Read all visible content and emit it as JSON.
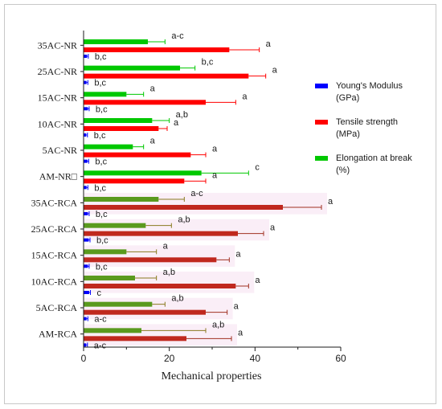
{
  "chart_data": {
    "type": "bar",
    "orientation": "horizontal",
    "xlabel": "Mechanical properties",
    "ylabel": "",
    "xlim": [
      0,
      60
    ],
    "xticks": [
      0,
      20,
      40,
      60
    ],
    "grid": false,
    "legend_position": "right",
    "categories": [
      "35AC-NR",
      "25AC-NR",
      "15AC-NR",
      "10AC-NR",
      "5AC-NR",
      "AM-NR□",
      "35AC-RCA",
      "25AC-RCA",
      "15AC-RCA",
      "10AC-RCA",
      "5AC-RCA",
      "AM-RCA"
    ],
    "series": [
      {
        "name": "Elongation at break (%)",
        "color": "#00c800",
        "values": [
          15,
          22.5,
          10,
          16,
          11.5,
          27.5,
          17.5,
          14.5,
          10,
          12,
          16,
          13.5
        ],
        "errors": [
          4,
          3.5,
          4,
          4,
          2.5,
          11,
          6,
          6,
          7,
          5,
          3,
          15
        ],
        "letters": [
          "a-c",
          "b,c",
          "a",
          "a,b",
          "a",
          "c",
          "a-c",
          "a,b",
          "a",
          "a,b",
          "a,b",
          "a,b"
        ]
      },
      {
        "name": "Tensile strength (MPa)",
        "color": "#ff0000",
        "values": [
          34,
          38.5,
          28.5,
          17.5,
          25,
          23.5,
          46.5,
          36,
          31,
          35.5,
          28.5,
          24
        ],
        "errors": [
          7,
          4,
          7,
          2,
          3.5,
          5,
          9,
          6,
          3,
          3,
          5,
          10.5
        ],
        "letters": [
          "a",
          "a",
          "a",
          "a",
          "a",
          "a",
          "a",
          "a",
          "a",
          "a",
          "a",
          "a"
        ]
      },
      {
        "name": "Young's Modulus (GPa)",
        "color": "#0000ff",
        "values": [
          0.8,
          0.7,
          1.0,
          0.6,
          0.9,
          0.7,
          1.0,
          1.2,
          1.0,
          1.3,
          0.7,
          0.6
        ],
        "errors": [
          0.3,
          0.3,
          0.3,
          0.3,
          0.3,
          0.3,
          0.3,
          0.3,
          0.3,
          0.3,
          0.3,
          0.3
        ],
        "letters": [
          "b,c",
          "b,c",
          "b,c",
          "b,c",
          "b,c",
          "b,c",
          "b,c",
          "b,c",
          "b,c",
          "c",
          "a-c",
          "a-c"
        ]
      }
    ],
    "legend": [
      {
        "series": "Young's Modulus (GPa)",
        "text": "Young's Modulus\n(GPa)",
        "color": "#0000ff"
      },
      {
        "series": "Tensile strength (MPa)",
        "text": "Tensile strength\n(MPa)",
        "color": "#ff0000"
      },
      {
        "series": "Elongation at break (%)",
        "text": "Elongation at break\n          (%)",
        "color": "#00c800"
      }
    ]
  }
}
